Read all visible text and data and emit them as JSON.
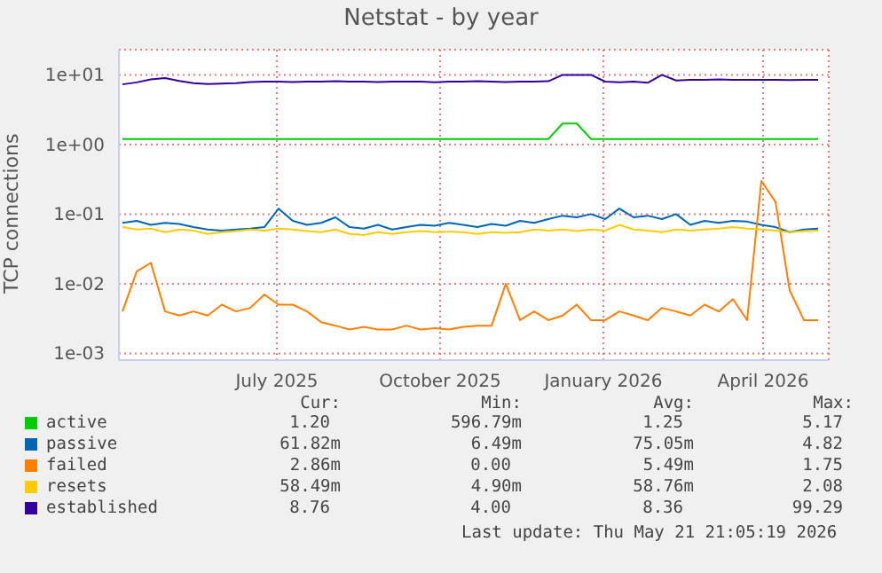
{
  "chart_data": {
    "type": "line",
    "title": "Netstat - by year",
    "ylabel": "TCP connections",
    "log": "y",
    "grid": true,
    "legend": "bottom",
    "marker": "none",
    "line_style": "solid",
    "x": [
      "2025-04-20",
      "2025-04-28",
      "2025-05-06",
      "2025-05-14",
      "2025-05-22",
      "2025-05-30",
      "2025-06-07",
      "2025-06-15",
      "2025-06-23",
      "2025-07-01",
      "2025-07-09",
      "2025-07-17",
      "2025-07-25",
      "2025-08-02",
      "2025-08-10",
      "2025-08-18",
      "2025-08-26",
      "2025-09-03",
      "2025-09-11",
      "2025-09-19",
      "2025-09-27",
      "2025-10-05",
      "2025-10-13",
      "2025-10-21",
      "2025-10-29",
      "2025-11-06",
      "2025-11-14",
      "2025-11-22",
      "2025-11-30",
      "2025-12-08",
      "2025-12-16",
      "2025-12-24",
      "2026-01-01",
      "2026-01-09",
      "2026-01-17",
      "2026-01-25",
      "2026-02-02",
      "2026-02-10",
      "2026-02-18",
      "2026-02-26",
      "2026-03-06",
      "2026-03-14",
      "2026-03-22",
      "2026-03-30",
      "2026-04-07",
      "2026-04-15",
      "2026-04-23",
      "2026-05-01",
      "2026-05-09",
      "2026-05-17"
    ],
    "xlim": [
      "2025-04-18",
      "2026-05-23"
    ],
    "xticks": [
      {
        "value": "2025-07-16",
        "label": "July 2025"
      },
      {
        "value": "2025-10-16",
        "label": "October 2025"
      },
      {
        "value": "2026-01-16",
        "label": "January 2026"
      },
      {
        "value": "2026-04-16",
        "label": "April 2026"
      }
    ],
    "ylim": [
      0.0008,
      23
    ],
    "yticks": [
      {
        "value": 0.001,
        "label": "1e-03"
      },
      {
        "value": 0.01,
        "label": "1e-02"
      },
      {
        "value": 0.1,
        "label": "1e-01"
      },
      {
        "value": 1,
        "label": "1e+00"
      },
      {
        "value": 10,
        "label": "1e+01"
      }
    ],
    "series": [
      {
        "name": "active",
        "color": "#00cc00",
        "values": [
          1.2,
          1.2,
          1.2,
          1.2,
          1.2,
          1.2,
          1.2,
          1.2,
          1.2,
          1.2,
          1.2,
          1.2,
          1.2,
          1.2,
          1.2,
          1.2,
          1.2,
          1.2,
          1.2,
          1.2,
          1.2,
          1.2,
          1.2,
          1.2,
          1.2,
          1.2,
          1.2,
          1.2,
          1.2,
          1.2,
          1.2,
          2.0,
          2.0,
          1.2,
          1.2,
          1.2,
          1.2,
          1.2,
          1.2,
          1.2,
          1.2,
          1.2,
          1.2,
          1.2,
          1.2,
          1.2,
          1.2,
          1.2,
          1.2,
          1.2
        ]
      },
      {
        "name": "passive",
        "color": "#0066b3",
        "values": [
          0.075,
          0.08,
          0.07,
          0.075,
          0.072,
          0.065,
          0.06,
          0.058,
          0.06,
          0.062,
          0.065,
          0.12,
          0.08,
          0.07,
          0.075,
          0.09,
          0.065,
          0.062,
          0.07,
          0.06,
          0.065,
          0.07,
          0.068,
          0.075,
          0.07,
          0.065,
          0.072,
          0.068,
          0.08,
          0.075,
          0.085,
          0.095,
          0.09,
          0.1,
          0.085,
          0.12,
          0.09,
          0.095,
          0.085,
          0.1,
          0.07,
          0.08,
          0.075,
          0.08,
          0.078,
          0.07,
          0.065,
          0.055,
          0.06,
          0.062
        ]
      },
      {
        "name": "failed",
        "color": "#ff8000",
        "values": [
          0.004,
          0.015,
          0.02,
          0.004,
          0.0035,
          0.004,
          0.0035,
          0.005,
          0.004,
          0.0045,
          0.007,
          0.005,
          0.005,
          0.004,
          0.0028,
          0.0025,
          0.0022,
          0.0024,
          0.0022,
          0.0022,
          0.0025,
          0.0022,
          0.0023,
          0.0022,
          0.0024,
          0.0025,
          0.0025,
          0.01,
          0.003,
          0.004,
          0.003,
          0.0035,
          0.005,
          0.003,
          0.003,
          0.004,
          0.0035,
          0.003,
          0.0045,
          0.004,
          0.0035,
          0.005,
          0.004,
          0.006,
          0.003,
          0.3,
          0.15,
          0.008,
          0.003,
          0.003
        ]
      },
      {
        "name": "resets",
        "color": "#ffcc00",
        "values": [
          0.065,
          0.06,
          0.062,
          0.055,
          0.06,
          0.058,
          0.052,
          0.055,
          0.057,
          0.06,
          0.058,
          0.062,
          0.06,
          0.057,
          0.055,
          0.06,
          0.052,
          0.05,
          0.055,
          0.052,
          0.055,
          0.057,
          0.055,
          0.056,
          0.055,
          0.052,
          0.055,
          0.054,
          0.055,
          0.06,
          0.058,
          0.06,
          0.057,
          0.06,
          0.058,
          0.07,
          0.06,
          0.058,
          0.055,
          0.06,
          0.058,
          0.06,
          0.062,
          0.065,
          0.062,
          0.06,
          0.058,
          0.055,
          0.057,
          0.058
        ]
      },
      {
        "name": "established",
        "color": "#330099",
        "values": [
          7.3,
          7.8,
          8.6,
          9.0,
          8.2,
          7.6,
          7.4,
          7.5,
          7.6,
          7.9,
          8.0,
          8.0,
          7.9,
          8.0,
          8.0,
          8.1,
          8.0,
          8.0,
          7.9,
          8.0,
          8.0,
          8.0,
          7.8,
          8.0,
          8.0,
          8.1,
          8.0,
          7.9,
          8.0,
          8.0,
          8.1,
          10.0,
          10.0,
          10.0,
          8.0,
          7.8,
          8.0,
          7.7,
          10.0,
          8.3,
          8.5,
          8.5,
          8.6,
          8.5,
          8.5,
          8.5,
          8.5,
          8.4,
          8.5,
          8.5
        ]
      }
    ],
    "annotations": [
      "Cur:",
      "Min:",
      "Avg:",
      "Max:",
      "1.20",
      "596.79m",
      "1.25",
      "5.17",
      "61.82m",
      "6.49m",
      "75.05m",
      "4.82",
      "2.86m",
      "0.00",
      "5.49m",
      "1.75",
      "58.49m",
      "4.90m",
      "58.76m",
      "2.08",
      "8.76",
      "4.00",
      "8.36",
      "99.29",
      "Last update: Thu May 21 21:05:19 2026"
    ]
  }
}
